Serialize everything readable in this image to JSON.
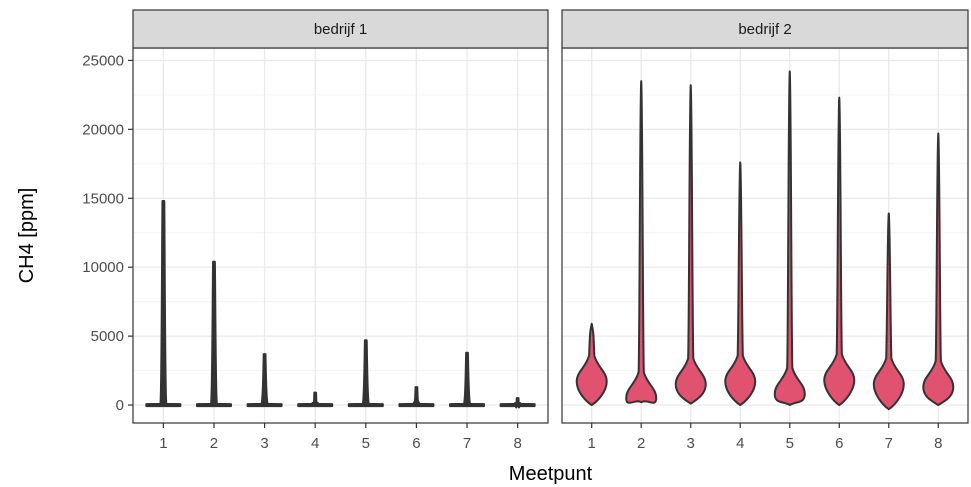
{
  "chart_data": {
    "type": "violin",
    "xlabel": "Meetpunt",
    "ylabel": "CH4 [ppm]",
    "ylim": [
      -1300,
      25900
    ],
    "y_ticks": [
      0,
      5000,
      10000,
      15000,
      20000,
      25000
    ],
    "x_ticks": [
      "1",
      "2",
      "3",
      "4",
      "5",
      "6",
      "7",
      "8"
    ],
    "grid": true,
    "fill_color": "#e0526f",
    "panels": [
      {
        "label": "bedrijf 1",
        "fill": "none",
        "violins": [
          {
            "meetpunt": "1",
            "min": 0,
            "max": 14800
          },
          {
            "meetpunt": "2",
            "min": 0,
            "max": 10400
          },
          {
            "meetpunt": "3",
            "min": 0,
            "max": 3700
          },
          {
            "meetpunt": "4",
            "min": 0,
            "max": 900
          },
          {
            "meetpunt": "5",
            "min": 0,
            "max": 4700
          },
          {
            "meetpunt": "6",
            "min": 0,
            "max": 1300
          },
          {
            "meetpunt": "7",
            "min": 0,
            "max": 3800
          },
          {
            "meetpunt": "8",
            "min": 0,
            "max": 500
          }
        ]
      },
      {
        "label": "bedrijf 2",
        "fill": "#e0526f",
        "violins": [
          {
            "meetpunt": "1",
            "min": 0,
            "max": 5900,
            "mode": 1700
          },
          {
            "meetpunt": "2",
            "min": 200,
            "max": 23500,
            "mode": 500
          },
          {
            "meetpunt": "3",
            "min": 100,
            "max": 23200,
            "mode": 1500
          },
          {
            "meetpunt": "4",
            "min": 0,
            "max": 17600,
            "mode": 1700
          },
          {
            "meetpunt": "5",
            "min": 0,
            "max": 24200,
            "mode": 800
          },
          {
            "meetpunt": "6",
            "min": 0,
            "max": 22300,
            "mode": 1800
          },
          {
            "meetpunt": "7",
            "min": -300,
            "max": 13900,
            "mode": 1500
          },
          {
            "meetpunt": "8",
            "min": 0,
            "max": 19700,
            "mode": 1300
          }
        ]
      }
    ]
  }
}
